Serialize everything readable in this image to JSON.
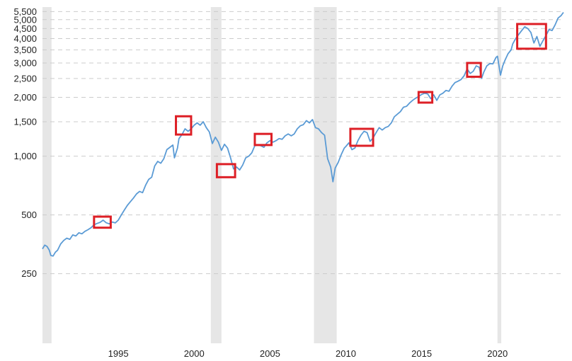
{
  "chart_data": {
    "type": "line",
    "title": "",
    "xlabel": "",
    "ylabel": "",
    "y_scale": "log",
    "xlim": [
      1990.0,
      2023.9
    ],
    "ylim": [
      110,
      5800
    ],
    "grid": {
      "horizontal": true,
      "vertical": false,
      "style": "dashed"
    },
    "legend": "none",
    "x_ticks": [
      {
        "value": 1995,
        "label": "1995"
      },
      {
        "value": 2000,
        "label": "2000"
      },
      {
        "value": 2005,
        "label": "2005"
      },
      {
        "value": 2010,
        "label": "2010"
      },
      {
        "value": 2015,
        "label": "2015"
      },
      {
        "value": 2020,
        "label": "2020"
      }
    ],
    "y_ticks": [
      {
        "value": 250,
        "label": "250"
      },
      {
        "value": 500,
        "label": "500"
      },
      {
        "value": 1000,
        "label": "1,000"
      },
      {
        "value": 1500,
        "label": "1,500"
      },
      {
        "value": 2000,
        "label": "2,000"
      },
      {
        "value": 2500,
        "label": "2,500"
      },
      {
        "value": 3000,
        "label": "3,000"
      },
      {
        "value": 3500,
        "label": "3,500"
      },
      {
        "value": 4000,
        "label": "4,000"
      },
      {
        "value": 4500,
        "label": "4,500"
      },
      {
        "value": 5000,
        "label": "5,000"
      },
      {
        "value": 5500,
        "label": "5,500"
      }
    ],
    "recessions": [
      {
        "start": 1990.0,
        "end": 1990.6
      },
      {
        "start": 2001.1,
        "end": 2001.8
      },
      {
        "start": 2007.9,
        "end": 2009.4
      },
      {
        "start": 2020.0,
        "end": 2020.25
      }
    ],
    "highlight_boxes": [
      {
        "x0": 1993.4,
        "x1": 1994.5,
        "y0": 430,
        "y1": 490
      },
      {
        "x0": 1998.8,
        "x1": 1999.8,
        "y0": 1290,
        "y1": 1600
      },
      {
        "x0": 2001.5,
        "x1": 2002.7,
        "y0": 780,
        "y1": 910
      },
      {
        "x0": 2004.0,
        "x1": 2005.1,
        "y0": 1140,
        "y1": 1300
      },
      {
        "x0": 2010.3,
        "x1": 2011.8,
        "y0": 1130,
        "y1": 1380
      },
      {
        "x0": 2014.8,
        "x1": 2015.7,
        "y0": 1880,
        "y1": 2130
      },
      {
        "x0": 2018.0,
        "x1": 2018.9,
        "y0": 2550,
        "y1": 3000
      },
      {
        "x0": 2021.3,
        "x1": 2023.2,
        "y0": 3550,
        "y1": 4750
      }
    ],
    "series": [
      {
        "color": "#5b9bd5",
        "points": [
          [
            1990.0,
            335
          ],
          [
            1990.15,
            350
          ],
          [
            1990.3,
            345
          ],
          [
            1990.45,
            330
          ],
          [
            1990.55,
            310
          ],
          [
            1990.7,
            308
          ],
          [
            1990.85,
            322
          ],
          [
            1991.0,
            330
          ],
          [
            1991.2,
            355
          ],
          [
            1991.4,
            370
          ],
          [
            1991.6,
            380
          ],
          [
            1991.8,
            375
          ],
          [
            1992.0,
            395
          ],
          [
            1992.2,
            390
          ],
          [
            1992.4,
            405
          ],
          [
            1992.6,
            400
          ],
          [
            1992.8,
            412
          ],
          [
            1993.0,
            420
          ],
          [
            1993.2,
            430
          ],
          [
            1993.4,
            445
          ],
          [
            1993.6,
            452
          ],
          [
            1993.8,
            458
          ],
          [
            1994.0,
            470
          ],
          [
            1994.2,
            456
          ],
          [
            1994.4,
            450
          ],
          [
            1994.6,
            460
          ],
          [
            1994.8,
            455
          ],
          [
            1995.0,
            470
          ],
          [
            1995.2,
            500
          ],
          [
            1995.4,
            530
          ],
          [
            1995.6,
            560
          ],
          [
            1995.8,
            585
          ],
          [
            1996.0,
            610
          ],
          [
            1996.2,
            640
          ],
          [
            1996.4,
            660
          ],
          [
            1996.6,
            650
          ],
          [
            1996.8,
            710
          ],
          [
            1997.0,
            760
          ],
          [
            1997.2,
            780
          ],
          [
            1997.4,
            890
          ],
          [
            1997.6,
            940
          ],
          [
            1997.8,
            920
          ],
          [
            1998.0,
            970
          ],
          [
            1998.2,
            1080
          ],
          [
            1998.4,
            1110
          ],
          [
            1998.6,
            1140
          ],
          [
            1998.7,
            980
          ],
          [
            1998.9,
            1100
          ],
          [
            1999.0,
            1230
          ],
          [
            1999.2,
            1290
          ],
          [
            1999.4,
            1380
          ],
          [
            1999.6,
            1340
          ],
          [
            1999.8,
            1380
          ],
          [
            2000.0,
            1440
          ],
          [
            2000.2,
            1480
          ],
          [
            2000.4,
            1440
          ],
          [
            2000.6,
            1500
          ],
          [
            2000.8,
            1400
          ],
          [
            2001.0,
            1330
          ],
          [
            2001.2,
            1160
          ],
          [
            2001.4,
            1250
          ],
          [
            2001.6,
            1180
          ],
          [
            2001.8,
            1070
          ],
          [
            2002.0,
            1150
          ],
          [
            2002.2,
            1100
          ],
          [
            2002.4,
            980
          ],
          [
            2002.6,
            860
          ],
          [
            2002.8,
            880
          ],
          [
            2003.0,
            850
          ],
          [
            2003.2,
            900
          ],
          [
            2003.4,
            980
          ],
          [
            2003.6,
            1000
          ],
          [
            2003.8,
            1040
          ],
          [
            2004.0,
            1130
          ],
          [
            2004.2,
            1140
          ],
          [
            2004.4,
            1130
          ],
          [
            2004.6,
            1110
          ],
          [
            2004.8,
            1170
          ],
          [
            2005.0,
            1200
          ],
          [
            2005.2,
            1180
          ],
          [
            2005.4,
            1200
          ],
          [
            2005.6,
            1230
          ],
          [
            2005.8,
            1220
          ],
          [
            2006.0,
            1270
          ],
          [
            2006.2,
            1300
          ],
          [
            2006.4,
            1270
          ],
          [
            2006.6,
            1300
          ],
          [
            2006.8,
            1380
          ],
          [
            2007.0,
            1430
          ],
          [
            2007.2,
            1450
          ],
          [
            2007.4,
            1520
          ],
          [
            2007.6,
            1480
          ],
          [
            2007.8,
            1540
          ],
          [
            2008.0,
            1400
          ],
          [
            2008.2,
            1380
          ],
          [
            2008.4,
            1320
          ],
          [
            2008.6,
            1280
          ],
          [
            2008.8,
            970
          ],
          [
            2009.0,
            880
          ],
          [
            2009.15,
            740
          ],
          [
            2009.3,
            870
          ],
          [
            2009.5,
            930
          ],
          [
            2009.7,
            1020
          ],
          [
            2009.9,
            1100
          ],
          [
            2010.0,
            1120
          ],
          [
            2010.2,
            1170
          ],
          [
            2010.4,
            1080
          ],
          [
            2010.6,
            1100
          ],
          [
            2010.8,
            1200
          ],
          [
            2011.0,
            1280
          ],
          [
            2011.2,
            1340
          ],
          [
            2011.4,
            1320
          ],
          [
            2011.6,
            1190
          ],
          [
            2011.8,
            1240
          ],
          [
            2012.0,
            1320
          ],
          [
            2012.2,
            1400
          ],
          [
            2012.4,
            1360
          ],
          [
            2012.6,
            1400
          ],
          [
            2012.8,
            1420
          ],
          [
            2013.0,
            1480
          ],
          [
            2013.2,
            1590
          ],
          [
            2013.4,
            1640
          ],
          [
            2013.6,
            1690
          ],
          [
            2013.8,
            1780
          ],
          [
            2014.0,
            1800
          ],
          [
            2014.2,
            1870
          ],
          [
            2014.4,
            1930
          ],
          [
            2014.6,
            1980
          ],
          [
            2014.8,
            2020
          ],
          [
            2015.0,
            2070
          ],
          [
            2015.2,
            2100
          ],
          [
            2015.4,
            2080
          ],
          [
            2015.6,
            1970
          ],
          [
            2015.8,
            2060
          ],
          [
            2016.0,
            1930
          ],
          [
            2016.2,
            2060
          ],
          [
            2016.4,
            2100
          ],
          [
            2016.6,
            2170
          ],
          [
            2016.8,
            2150
          ],
          [
            2017.0,
            2280
          ],
          [
            2017.2,
            2380
          ],
          [
            2017.4,
            2420
          ],
          [
            2017.6,
            2470
          ],
          [
            2017.8,
            2580
          ],
          [
            2018.0,
            2800
          ],
          [
            2018.2,
            2650
          ],
          [
            2018.4,
            2720
          ],
          [
            2018.6,
            2900
          ],
          [
            2018.8,
            2850
          ],
          [
            2018.95,
            2500
          ],
          [
            2019.1,
            2700
          ],
          [
            2019.3,
            2900
          ],
          [
            2019.5,
            2980
          ],
          [
            2019.7,
            2970
          ],
          [
            2019.9,
            3200
          ],
          [
            2020.0,
            3250
          ],
          [
            2020.2,
            2600
          ],
          [
            2020.35,
            2900
          ],
          [
            2020.5,
            3100
          ],
          [
            2020.7,
            3350
          ],
          [
            2020.9,
            3500
          ],
          [
            2021.0,
            3750
          ],
          [
            2021.2,
            4000
          ],
          [
            2021.4,
            4200
          ],
          [
            2021.6,
            4400
          ],
          [
            2021.8,
            4600
          ],
          [
            2022.0,
            4500
          ],
          [
            2022.2,
            4300
          ],
          [
            2022.4,
            3800
          ],
          [
            2022.6,
            4100
          ],
          [
            2022.8,
            3650
          ],
          [
            2023.0,
            3900
          ],
          [
            2023.2,
            4150
          ],
          [
            2023.4,
            4450
          ],
          [
            2023.6,
            4400
          ],
          [
            2023.8,
            4700
          ],
          [
            2024.0,
            5100
          ],
          [
            2024.2,
            5250
          ],
          [
            2024.35,
            5450
          ]
        ]
      }
    ]
  }
}
